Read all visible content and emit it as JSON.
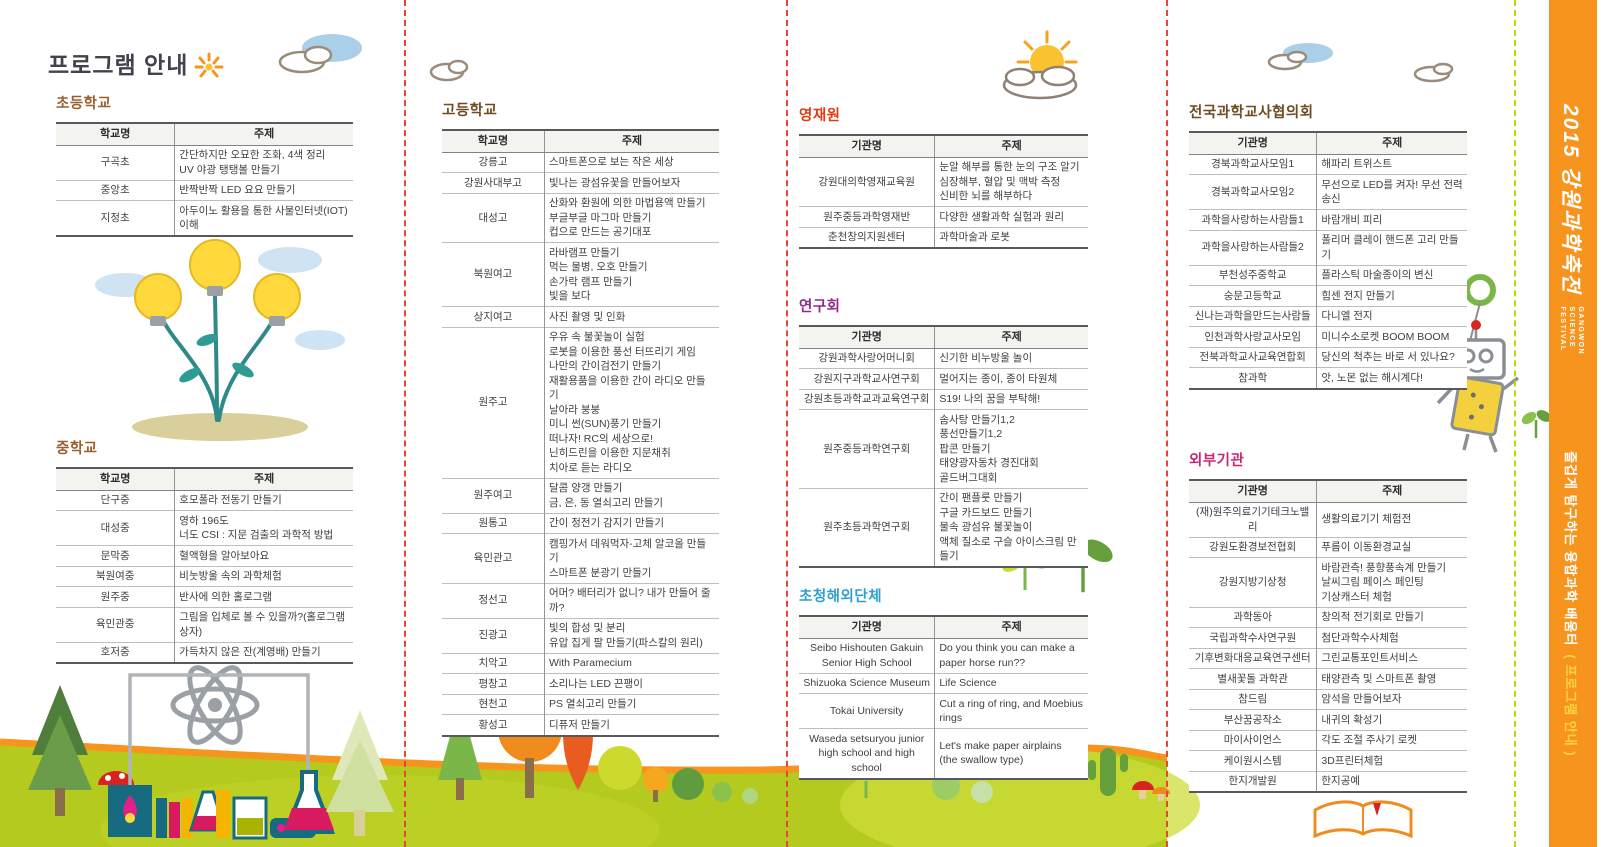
{
  "page_title": "프로그램 안내",
  "spine": {
    "year_title": "2015 강원과학축전",
    "subtitle_en": "GANGWON SCIENCE FESTIVAL",
    "tagline": "즐겁게 탐구하는 융합과학 배움터",
    "tagline_suffix": "( 프로그램 안내 )",
    "bg_color": "#f7941e",
    "accent_color": "#ffd23f"
  },
  "decorations": {
    "icons": [
      "sun-doodle-icon",
      "cloud-icon",
      "sun-icon",
      "lightbulb-plant-illustration",
      "atom-icon",
      "chemistry-set-illustration",
      "pine-tree-icon",
      "mushroom-icon",
      "autumn-trees-illustration",
      "sprout-icon",
      "robot-illustration",
      "balloon-rings-icon",
      "moon-icon",
      "rocket-icon",
      "saturn-icon",
      "satellite-icon",
      "open-book-illustration",
      "cactus-icon",
      "grass-band"
    ]
  },
  "sections": {
    "elementary": {
      "heading": "초등학교",
      "color": "#9c5f2e",
      "col1": "학교명",
      "col2": "주제",
      "name_col": "40%",
      "rows": [
        {
          "name": "구곡초",
          "topics": [
            "간단하지만 오묘한 조화, 4색 정리",
            "UV 야광 탱탱볼 만들기"
          ]
        },
        {
          "name": "중앙초",
          "topics": [
            "반짝반짝 LED 요요 만들기"
          ]
        },
        {
          "name": "지정초",
          "topics": [
            "아두이노 활용을 통한 사물인터넷(IOT) 이해"
          ]
        }
      ]
    },
    "middle": {
      "heading": "중학교",
      "color": "#9c5f2e",
      "col1": "학교명",
      "col2": "주제",
      "name_col": "40%",
      "rows": [
        {
          "name": "단구중",
          "topics": [
            "호모폴라 전동기 만들기"
          ]
        },
        {
          "name": "대성중",
          "topics": [
            "영하 196도",
            "너도 CSI : 지문 검출의 과학적 방법"
          ]
        },
        {
          "name": "문막중",
          "topics": [
            "혈액형을 알아보아요"
          ]
        },
        {
          "name": "북원여중",
          "topics": [
            "비눗방울 속의 과학체험"
          ]
        },
        {
          "name": "원주중",
          "topics": [
            "반사에 의한 홀로그램"
          ]
        },
        {
          "name": "육민관중",
          "topics": [
            "그림을 입체로 볼 수 있을까?(홀로그램 상자)"
          ]
        },
        {
          "name": "호저중",
          "topics": [
            "가득차지 않은 잔(계영배) 만들기"
          ]
        }
      ]
    },
    "high": {
      "heading": "고등학교",
      "color": "#6e4b23",
      "col1": "학교명",
      "col2": "주제",
      "name_col": "37%",
      "rows": [
        {
          "name": "강릉고",
          "topics": [
            "스마트폰으로 보는 작은 세상"
          ]
        },
        {
          "name": "강원사대부고",
          "topics": [
            "빛나는 광섬유꽃을 만들어보자"
          ]
        },
        {
          "name": "대성고",
          "topics": [
            "산화와 환원에 의한 마법용액 만들기",
            "부글부글 마그마 만들기",
            "컵으로 만드는 공기대포"
          ]
        },
        {
          "name": "북원여고",
          "topics": [
            "라바램프 만들기",
            "먹는 물병, 오호 만들기",
            "손가락 램프 만들기",
            "빛을 보다"
          ]
        },
        {
          "name": "상지여고",
          "topics": [
            "사진 촬영 및 인화"
          ]
        },
        {
          "name": "원주고",
          "topics": [
            "우유 속 불꽃놀이 실험",
            "로봇을 이용한 풍선 터뜨리기 게임",
            "나만의 간이검전기 만들기",
            "재활용품을 이용한 간이 라디오 만들기",
            "날아라 붕붕",
            "미니 썬(SUN)풍기 만들기",
            "떠나자! RC의 세상으로!",
            "닌히드린을 이용한 지문채취",
            "치아로 듣는 라디오"
          ]
        },
        {
          "name": "원주여고",
          "topics": [
            "달콤 양갱 만들기",
            "금, 은, 동 열쇠고리 만들기"
          ]
        },
        {
          "name": "원통고",
          "topics": [
            "간이 정전기 감지기 만들기"
          ]
        },
        {
          "name": "육민관고",
          "topics": [
            "캠핑가서 데워먹자-고체 알코올 만들기",
            "스마트폰 분광기 만들기"
          ]
        },
        {
          "name": "정선고",
          "topics": [
            "어머? 배터리가 없니? 내가 만들어 줄까?"
          ]
        },
        {
          "name": "진광고",
          "topics": [
            "빛의 합성 및 분리",
            "유압 집게 팔 만들기(파스칼의 원리)"
          ]
        },
        {
          "name": "치악고",
          "topics": [
            "With Paramecium"
          ]
        },
        {
          "name": "평창고",
          "topics": [
            "소리나는 LED 끈팽이"
          ]
        },
        {
          "name": "현천고",
          "topics": [
            "PS 열쇠고리 만들기"
          ]
        },
        {
          "name": "황성고",
          "topics": [
            "디퓨저 만들기"
          ]
        }
      ]
    },
    "gifted": {
      "heading": "영재원",
      "color": "#e8380d",
      "col1": "기관명",
      "col2": "주제",
      "name_col": "47%",
      "rows": [
        {
          "name": "강원대의학영재교육원",
          "topics": [
            "눈알 해부를 통한 눈의 구조 알기",
            "심장해부, 혈압 및 맥박 측정",
            "신비한 뇌를 해부하다"
          ]
        },
        {
          "name": "원주중등과학영재반",
          "topics": [
            "다양한 생활과학 실험과 원리"
          ]
        },
        {
          "name": "춘천창의지원센터",
          "topics": [
            "과학마술과 로봇"
          ]
        }
      ]
    },
    "research": {
      "heading": "연구회",
      "color": "#8f2a8c",
      "col1": "기관명",
      "col2": "주제",
      "name_col": "47%",
      "rows": [
        {
          "name": "강원과학사랑어머니회",
          "topics": [
            "신기한 비누방울 놀이"
          ]
        },
        {
          "name": "강원지구과학교사연구회",
          "topics": [
            "멀어지는 종이, 종이 타원체"
          ]
        },
        {
          "name": "강원초등과학교과교육연구회",
          "topics": [
            "S19! 나의 꿈을 부탁해!"
          ]
        },
        {
          "name": "원주중등과학연구회",
          "topics": [
            "솜사탕 만들기1,2",
            "풍선만들기1,2",
            "팝콘 만들기",
            "태양광자동차 경진대회",
            "골드버그대회"
          ]
        },
        {
          "name": "원주초등과학연구회",
          "topics": [
            "간이 팬플룻 만들기",
            "구글 카드보드 만들기",
            "물속 광섬유 불꽃놀이",
            "액체 질소로 구슬 아이스크림 만들기"
          ]
        }
      ]
    },
    "overseas": {
      "heading": "초청해외단체",
      "color": "#2f9fd0",
      "col1": "기관명",
      "col2": "주제",
      "name_col": "47%",
      "rows": [
        {
          "name": "Seibo Hishouten Gakuin Senior High School",
          "topics": [
            "Do you think you can make a paper horse run??"
          ]
        },
        {
          "name": "Shizuoka Science Museum",
          "topics": [
            "Life Science"
          ]
        },
        {
          "name": "Tokai University",
          "topics": [
            "Cut a ring of ring, and Moebius rings"
          ]
        },
        {
          "name": "Waseda setsuryou junior high school and high school",
          "topics": [
            "Let's make paper airplains",
            "(the swallow type)"
          ]
        }
      ]
    },
    "teachers": {
      "heading": "전국과학교사협의회",
      "color": "#6e4b23",
      "col1": "기관명",
      "col2": "주제",
      "name_col": "46%",
      "rows": [
        {
          "name": "경북과학교사모임1",
          "topics": [
            "해파리 트위스트"
          ]
        },
        {
          "name": "경북과학교사모임2",
          "topics": [
            "무선으로 LED를 켜자! 무선 전력 송신"
          ]
        },
        {
          "name": "과학을사랑하는사람들1",
          "topics": [
            "바람개비 피리"
          ]
        },
        {
          "name": "과학을사랑하는사람들2",
          "topics": [
            "폴리머 클레이 핸드폰 고리 만들기"
          ]
        },
        {
          "name": "부천성주중학교",
          "topics": [
            "플라스틱 마술종이의 변신"
          ]
        },
        {
          "name": "숭문고등학교",
          "topics": [
            "힘센 전지 만들기"
          ]
        },
        {
          "name": "신나는과학을만드는사람들",
          "topics": [
            "다니엘 전지"
          ]
        },
        {
          "name": "인천과학사랑교사모임",
          "topics": [
            "미니수소로켓 BOOM BOOM"
          ]
        },
        {
          "name": "전북과학교사교육연합회",
          "topics": [
            "당신의 척추는 바로 서 있나요?"
          ]
        },
        {
          "name": "참과학",
          "topics": [
            "앗, 노몬 없는 해시계다!"
          ]
        }
      ]
    },
    "external": {
      "heading": "외부기관",
      "color": "#c52775",
      "col1": "기관명",
      "col2": "주제",
      "name_col": "46%",
      "rows": [
        {
          "name": "(재)원주의료기기테크노밸리",
          "topics": [
            "생활의료기기 체험전"
          ]
        },
        {
          "name": "강원도환경보전협회",
          "topics": [
            "푸름이 이동환경교실"
          ]
        },
        {
          "name": "강원지방기상청",
          "topics": [
            "바람관측! 풍향풍속계 만들기",
            "날씨그림 페이스 페인팅",
            "기상캐스터 체험"
          ]
        },
        {
          "name": "과학동아",
          "topics": [
            "창의적 전기회로 만들기"
          ]
        },
        {
          "name": "국립과학수사연구원",
          "topics": [
            "첨단과학수사체험"
          ]
        },
        {
          "name": "기후변화대응교육연구센터",
          "topics": [
            "그린교통포인트서비스"
          ]
        },
        {
          "name": "별새꽃돌 과학관",
          "topics": [
            "태양관측 및 스마트폰 촬영"
          ]
        },
        {
          "name": "참드림",
          "topics": [
            "암석을 만들어보자"
          ]
        },
        {
          "name": "부산꿈공작소",
          "topics": [
            "내귀의 확성기"
          ]
        },
        {
          "name": "마이사이언스",
          "topics": [
            "각도 조절 주사기 로켓"
          ]
        },
        {
          "name": "케이원시스템",
          "topics": [
            "3D프린터체험"
          ]
        },
        {
          "name": "한지개발원",
          "topics": [
            "한지공예"
          ]
        }
      ]
    }
  }
}
